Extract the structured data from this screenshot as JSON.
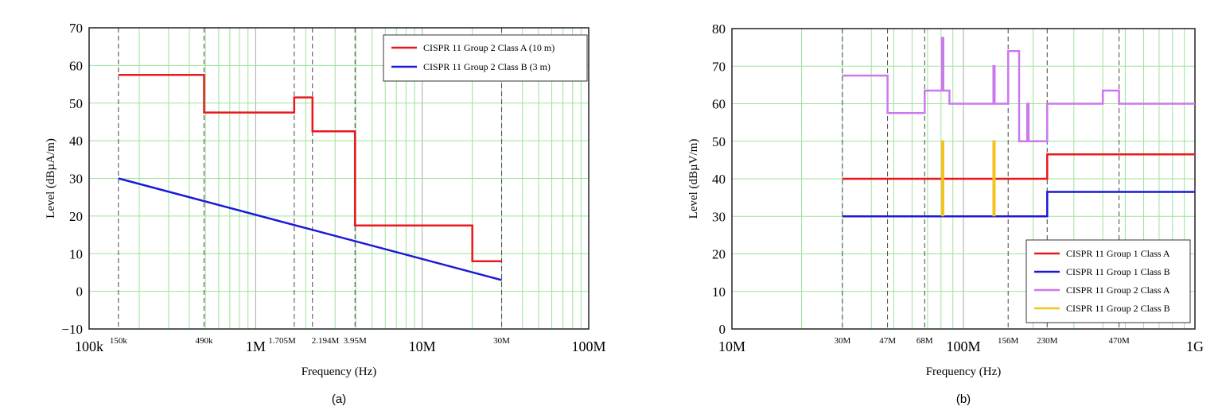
{
  "chart_data": [
    {
      "type": "line",
      "panel_label": "(a)",
      "xlabel": "Frequency (Hz)",
      "ylabel": "Level (dBµA/m)",
      "xscale": "log",
      "xlim": [
        100000,
        100000000
      ],
      "ylim": [
        -10,
        70
      ],
      "yticks": [
        -10,
        0,
        10,
        20,
        30,
        40,
        50,
        60,
        70
      ],
      "ytick_labels": [
        "−10",
        "0",
        "10",
        "20",
        "30",
        "40",
        "50",
        "60",
        "70"
      ],
      "xticks_major": [
        {
          "v": 100000,
          "label": "100k"
        },
        {
          "v": 1000000,
          "label": "1M"
        },
        {
          "v": 10000000,
          "label": "10M"
        },
        {
          "v": 100000000,
          "label": "100M"
        }
      ],
      "xmarkers": [
        {
          "v": 150000,
          "label": "150k"
        },
        {
          "v": 490000,
          "label": "490k"
        },
        {
          "v": 1705000,
          "label": "1.705M"
        },
        {
          "v": 2194000,
          "label": "2.194M"
        },
        {
          "v": 3950000,
          "label": "3.95M"
        },
        {
          "v": 30000000,
          "label": "30M"
        }
      ],
      "grid": true,
      "legend": "top-right",
      "series": [
        {
          "name": "CISPR 11 Group 2 Class A (10 m)",
          "color": "#e8181c",
          "x": [
            150000,
            490000,
            490000,
            1705000,
            1705000,
            2194000,
            2194000,
            3950000,
            3950000,
            20000000,
            20000000,
            30000000
          ],
          "y": [
            57.5,
            57.5,
            47.5,
            47.5,
            51.5,
            51.5,
            42.5,
            42.5,
            17.5,
            17.5,
            8,
            8
          ]
        },
        {
          "name": "CISPR 11 Group 2 Class B (3 m)",
          "color": "#1a1ad6",
          "x": [
            150000,
            30000000
          ],
          "y": [
            30,
            3
          ]
        }
      ]
    },
    {
      "type": "line",
      "panel_label": "(b)",
      "xlabel": "Frequency (Hz)",
      "ylabel": "Level (dBµV/m)",
      "xscale": "log",
      "xlim": [
        10000000,
        1000000000
      ],
      "ylim": [
        0,
        80
      ],
      "yticks": [
        0,
        10,
        20,
        30,
        40,
        50,
        60,
        70,
        80
      ],
      "ytick_labels": [
        "0",
        "10",
        "20",
        "30",
        "40",
        "50",
        "60",
        "70",
        "80"
      ],
      "xticks_major": [
        {
          "v": 10000000,
          "label": "10M"
        },
        {
          "v": 100000000,
          "label": "100M"
        },
        {
          "v": 1000000000,
          "label": "1G"
        }
      ],
      "xmarkers": [
        {
          "v": 30000000,
          "label": "30M"
        },
        {
          "v": 47000000,
          "label": "47M"
        },
        {
          "v": 68000000,
          "label": "68M"
        },
        {
          "v": 156000000,
          "label": "156M"
        },
        {
          "v": 230000000,
          "label": "230M"
        },
        {
          "v": 470000000,
          "label": "470M"
        }
      ],
      "grid": true,
      "legend": "bottom-right",
      "series": [
        {
          "name": "CISPR 11 Group 1 Class A",
          "color": "#e8181c",
          "x": [
            30000000,
            230000000,
            230000000,
            1000000000
          ],
          "y": [
            40,
            40,
            46.5,
            46.5
          ]
        },
        {
          "name": "CISPR 11 Group 1 Class B",
          "color": "#1a1ad6",
          "x": [
            30000000,
            230000000,
            230000000,
            1000000000
          ],
          "y": [
            30,
            30,
            36.5,
            36.5
          ]
        },
        {
          "name": "CISPR 11 Group 2 Class A",
          "color": "#cc77ee",
          "x": [
            30000000,
            47000000,
            47000000,
            68000000,
            68000000,
            80872000,
            80872000,
            81848000,
            81848000,
            87000000,
            87000000,
            134786000,
            134786000,
            136414000,
            136414000,
            156000000,
            156000000,
            174000000,
            174000000,
            188700000,
            188700000,
            190979000,
            190979000,
            230000000,
            230000000,
            400000000,
            400000000,
            470000000,
            470000000,
            1000000000
          ],
          "y": [
            67.5,
            67.5,
            57.5,
            57.5,
            63.5,
            63.5,
            77.5,
            77.5,
            63.5,
            63.5,
            60,
            60,
            70,
            70,
            60,
            60,
            74,
            74,
            50,
            50,
            60,
            60,
            50,
            50,
            60,
            60,
            63.5,
            63.5,
            60,
            60
          ]
        },
        {
          "name": "CISPR 11 Group 2 Class B",
          "color": "#f5c21b",
          "x": [
            80872000,
            80872000,
            81848000,
            81848000,
            null,
            134786000,
            134786000,
            136414000,
            136414000
          ],
          "y": [
            30,
            50,
            50,
            30,
            null,
            30,
            50,
            50,
            30
          ]
        }
      ]
    }
  ]
}
